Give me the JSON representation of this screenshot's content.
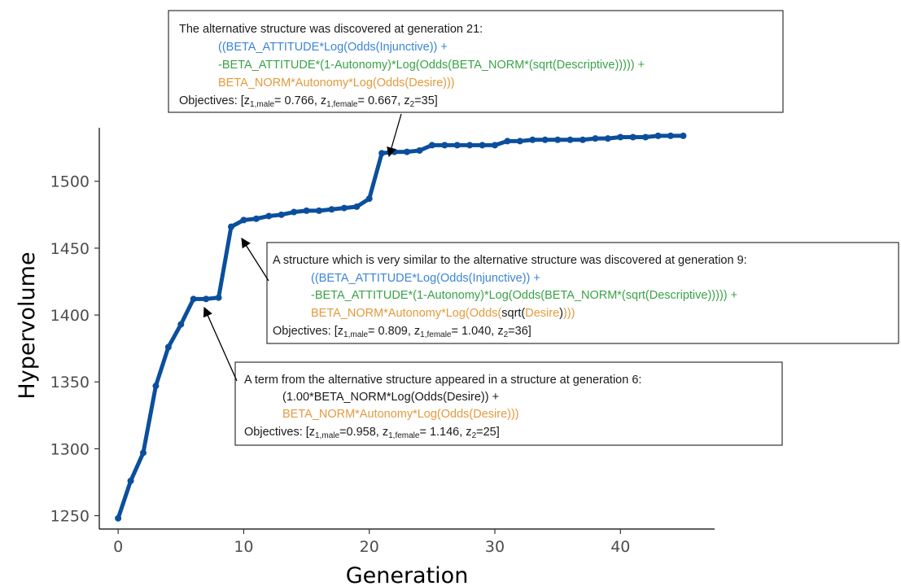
{
  "chart_data": {
    "type": "line",
    "xlabel": "Generation",
    "ylabel": "Hypervolume",
    "xlim": [
      -1.5,
      47.5
    ],
    "ylim": [
      1240,
      1540
    ],
    "xticks": [
      0,
      10,
      20,
      30,
      40
    ],
    "yticks": [
      1250,
      1300,
      1350,
      1400,
      1450,
      1500
    ],
    "grid": false,
    "series": [
      {
        "color": "#0b4f9c",
        "x": [
          0,
          1,
          2,
          3,
          4,
          5,
          6,
          7,
          8,
          9,
          10,
          11,
          12,
          13,
          14,
          15,
          16,
          17,
          18,
          19,
          20,
          21,
          22,
          23,
          24,
          25,
          26,
          27,
          28,
          29,
          30,
          31,
          32,
          33,
          34,
          35,
          36,
          37,
          38,
          39,
          40,
          41,
          42,
          43,
          44,
          45
        ],
        "y": [
          1248,
          1276,
          1297,
          1347,
          1376,
          1393,
          1412,
          1412,
          1413,
          1466,
          1471,
          1472,
          1474,
          1475,
          1477,
          1478,
          1478,
          1479,
          1480,
          1481,
          1487,
          1521,
          1522,
          1522,
          1523,
          1527,
          1527,
          1527,
          1527,
          1527,
          1527,
          1530,
          1530,
          1531,
          1531,
          1531,
          1531,
          1531,
          1532,
          1532,
          1533,
          1533,
          1533,
          1534,
          1534,
          1534
        ]
      }
    ],
    "annotations": [
      {
        "target": [
          21,
          1521
        ],
        "lines": [
          [
            {
              "t": "The alternative structure was discovered at generation 21:",
              "c": "#1a1a1a"
            }
          ],
          [
            {
              "t": "((BETA_ATTITUDE*Log(Odds(Injunctive)) +",
              "c": "#3b86d6"
            }
          ],
          [
            {
              "t": "-BETA_ATTITUDE*(1-Autonomy)*Log(Odds(BETA_NORM*(sqrt(Descriptive))))) +",
              "c": "#3aa348"
            }
          ],
          [
            {
              "t": "BETA_NORM*Autonomy*Log(Odds(Desire)))",
              "c": "#e39a3d"
            }
          ],
          [
            {
              "t": "Objectives: [z",
              "c": "#1a1a1a"
            },
            {
              "t": "1,male",
              "c": "#1a1a1a",
              "sub": true
            },
            {
              "t": "= 0.766, z",
              "c": "#1a1a1a"
            },
            {
              "t": "1,female",
              "c": "#1a1a1a",
              "sub": true
            },
            {
              "t": "= 0.667, z",
              "c": "#1a1a1a"
            },
            {
              "t": "2",
              "c": "#1a1a1a",
              "sub": true
            },
            {
              "t": "=35]",
              "c": "#1a1a1a"
            }
          ]
        ]
      },
      {
        "target": [
          9,
          1466
        ],
        "lines": [
          [
            {
              "t": "A structure which is very similar to the alternative structure was discovered at generation 9:",
              "c": "#1a1a1a"
            }
          ],
          [
            {
              "t": "((BETA_ATTITUDE*Log(Odds(Injunctive)) +",
              "c": "#3b86d6"
            }
          ],
          [
            {
              "t": "-BETA_ATTITUDE*(1-Autonomy)*Log(Odds(BETA_NORM*(sqrt(Descriptive))))) +",
              "c": "#3aa348"
            }
          ],
          [
            {
              "t": "BETA_NORM*Autonomy*Log(Odds(",
              "c": "#e39a3d"
            },
            {
              "t": "sqrt(",
              "c": "#1a1a1a"
            },
            {
              "t": "Desire",
              "c": "#e39a3d"
            },
            {
              "t": ")",
              "c": "#1a1a1a"
            },
            {
              "t": ")))",
              "c": "#e39a3d"
            }
          ],
          [
            {
              "t": "Objectives: [z",
              "c": "#1a1a1a"
            },
            {
              "t": "1,male",
              "c": "#1a1a1a",
              "sub": true
            },
            {
              "t": "= 0.809, z",
              "c": "#1a1a1a"
            },
            {
              "t": "1,female",
              "c": "#1a1a1a",
              "sub": true
            },
            {
              "t": "= 1.040, z",
              "c": "#1a1a1a"
            },
            {
              "t": "2",
              "c": "#1a1a1a",
              "sub": true
            },
            {
              "t": "=36]",
              "c": "#1a1a1a"
            }
          ]
        ]
      },
      {
        "target": [
          6,
          1412
        ],
        "lines": [
          [
            {
              "t": "A term from the alternative structure appeared in a structure at generation 6:",
              "c": "#1a1a1a"
            }
          ],
          [
            {
              "t": "(1.00*BETA_NORM*Log(Odds(Desire)) +",
              "c": "#1a1a1a"
            }
          ],
          [
            {
              "t": "BETA_NORM*Autonomy*Log(Odds(Desire)))",
              "c": "#e39a3d"
            }
          ],
          [
            {
              "t": "Objectives: [z",
              "c": "#1a1a1a"
            },
            {
              "t": "1,male",
              "c": "#1a1a1a",
              "sub": true
            },
            {
              "t": "=0.958, z",
              "c": "#1a1a1a"
            },
            {
              "t": "1,female",
              "c": "#1a1a1a",
              "sub": true
            },
            {
              "t": "= 1.146, z",
              "c": "#1a1a1a"
            },
            {
              "t": "2",
              "c": "#1a1a1a",
              "sub": true
            },
            {
              "t": "=25]",
              "c": "#1a1a1a"
            }
          ]
        ]
      }
    ]
  }
}
